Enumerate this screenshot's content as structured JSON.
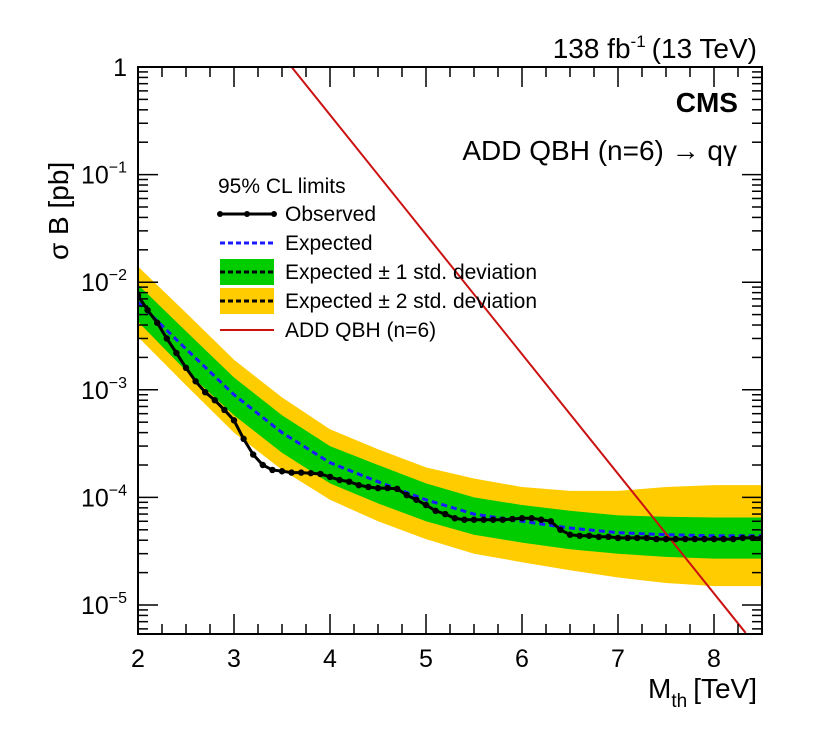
{
  "header": {
    "lumi_value": "138 fb",
    "lumi_exponent": "-1",
    "lumi_energy": "(13 TeV)"
  },
  "labels": {
    "experiment": "CMS",
    "model": "ADD QBH (n=6) → qγ"
  },
  "legend": {
    "header": "95% CL limits",
    "observed": "Observed",
    "expected": "Expected",
    "band1": "Expected ± 1 std. deviation",
    "band2": "Expected ± 2 std. deviation",
    "theory": "ADD QBH (n=6)"
  },
  "colors": {
    "observed": "#000000",
    "expected": "#1a1aff",
    "band1": "#00cc00",
    "band2": "#ffcc00",
    "theory": "#cc1111"
  },
  "chart_data": {
    "type": "line",
    "xlabel_main": "M",
    "xlabel_sub": "th",
    "xlabel_unit": "[TeV]",
    "ylabel": "σ B [pb]",
    "xlim": [
      2,
      8.5
    ],
    "ylim": [
      6e-06,
      1
    ],
    "yscale": "log",
    "x_ticks": [
      2,
      3,
      4,
      5,
      6,
      7,
      8
    ],
    "y_ticks": [
      {
        "value": 1,
        "label": "1"
      },
      {
        "value": 0.1,
        "base": "10",
        "exp": "−1"
      },
      {
        "value": 0.01,
        "base": "10",
        "exp": "−2"
      },
      {
        "value": 0.001,
        "base": "10",
        "exp": "−3"
      },
      {
        "value": 0.0001,
        "base": "10",
        "exp": "−4"
      },
      {
        "value": 1e-05,
        "base": "10",
        "exp": "−5"
      }
    ],
    "observed": {
      "x": [
        2.0,
        2.1,
        2.2,
        2.3,
        2.4,
        2.5,
        2.6,
        2.7,
        2.8,
        2.9,
        3.0,
        3.1,
        3.2,
        3.3,
        3.4,
        3.5,
        3.6,
        3.7,
        3.8,
        3.9,
        4.0,
        4.1,
        4.2,
        4.3,
        4.4,
        4.5,
        4.6,
        4.7,
        4.8,
        4.9,
        5.0,
        5.1,
        5.2,
        5.3,
        5.4,
        5.5,
        5.6,
        5.7,
        5.8,
        5.9,
        6.0,
        6.1,
        6.2,
        6.3,
        6.4,
        6.5,
        6.6,
        6.7,
        6.8,
        6.9,
        7.0,
        7.1,
        7.2,
        7.3,
        7.4,
        7.5,
        7.6,
        7.7,
        7.8,
        7.9,
        8.0,
        8.1,
        8.2,
        8.3,
        8.4,
        8.5
      ],
      "y": [
        0.0075,
        0.0055,
        0.0042,
        0.003,
        0.0022,
        0.0016,
        0.0012,
        0.00095,
        0.0008,
        0.00065,
        0.00052,
        0.00035,
        0.00025,
        0.0002,
        0.00018,
        0.000175,
        0.00017,
        0.00017,
        0.000168,
        0.000165,
        0.000155,
        0.000145,
        0.00014,
        0.00013,
        0.000125,
        0.000122,
        0.000122,
        0.00012,
        0.000105,
        9.5e-05,
        8.5e-05,
        7.5e-05,
        7e-05,
        6.4e-05,
        6.2e-05,
        6.2e-05,
        6.2e-05,
        6.2e-05,
        6.2e-05,
        6.3e-05,
        6.4e-05,
        6.4e-05,
        6.2e-05,
        6e-05,
        5e-05,
        4.5e-05,
        4.4e-05,
        4.4e-05,
        4.3e-05,
        4.3e-05,
        4.2e-05,
        4.2e-05,
        4.2e-05,
        4.2e-05,
        4.1e-05,
        4.1e-05,
        4.1e-05,
        4.1e-05,
        4.1e-05,
        4.1e-05,
        4.1e-05,
        4.1e-05,
        4.1e-05,
        4.2e-05,
        4.2e-05,
        4.2e-05
      ]
    },
    "expected": {
      "x": [
        2.0,
        2.5,
        3.0,
        3.5,
        4.0,
        4.5,
        5.0,
        5.5,
        6.0,
        6.5,
        7.0,
        7.5,
        8.0,
        8.5
      ],
      "median": [
        0.0065,
        0.0024,
        0.0009,
        0.0004,
        0.00021,
        0.00014,
        9.5e-05,
        7e-05,
        6e-05,
        5.2e-05,
        4.7e-05,
        4.5e-05,
        4.4e-05,
        4.4e-05
      ],
      "minus1": [
        0.0043,
        0.0015,
        0.00058,
        0.00026,
        0.000135,
        8.8e-05,
        6e-05,
        4.5e-05,
        3.8e-05,
        3.3e-05,
        3e-05,
        2.8e-05,
        2.7e-05,
        2.7e-05
      ],
      "plus1": [
        0.0095,
        0.0035,
        0.0013,
        0.00058,
        0.0003,
        0.0002,
        0.000135,
        0.0001,
        8.5e-05,
        7.5e-05,
        6.8e-05,
        6.6e-05,
        6.5e-05,
        6.5e-05
      ],
      "minus2": [
        0.0031,
        0.0011,
        0.0004,
        0.00018,
        9.5e-05,
        6e-05,
        4.1e-05,
        3e-05,
        2.5e-05,
        2.1e-05,
        1.8e-05,
        1.6e-05,
        1.5e-05,
        1.5e-05
      ],
      "plus2": [
        0.014,
        0.0052,
        0.0019,
        0.00085,
        0.00043,
        0.00028,
        0.00019,
        0.00015,
        0.000125,
        0.000115,
        0.000115,
        0.000125,
        0.00013,
        0.00013
      ]
    },
    "theory": {
      "name": "ADD QBH (n=6)",
      "x": [
        3.6,
        8.33
      ],
      "y": [
        1.0,
        5.5e-06
      ]
    }
  }
}
